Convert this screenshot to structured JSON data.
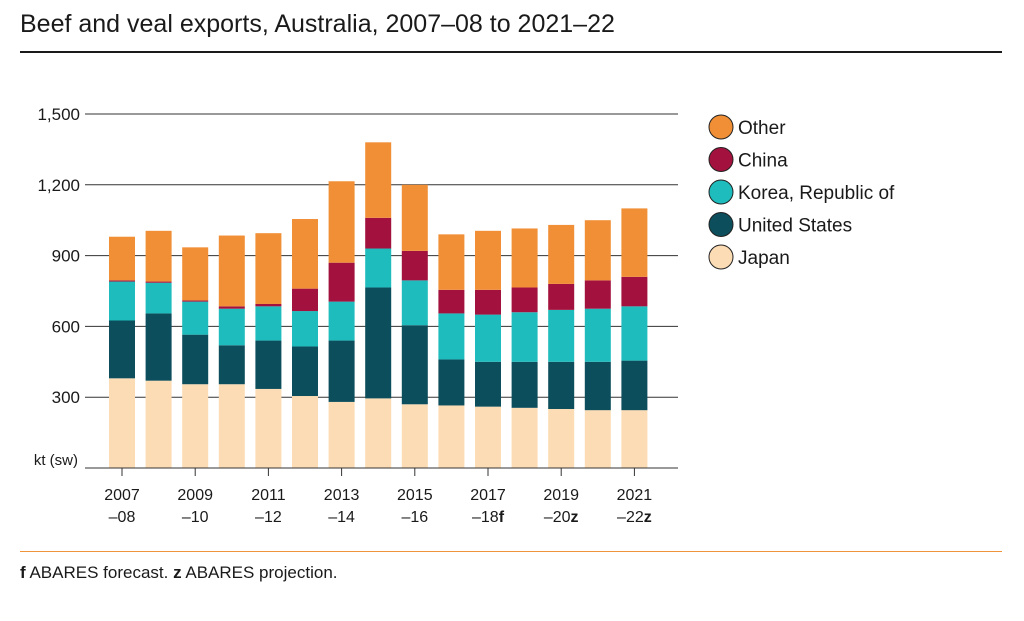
{
  "title": "Beef and veal exports, Australia, 2007–08 to 2021–22",
  "footnote": {
    "f_marker": "f",
    "f_text": " ABARES forecast. ",
    "z_marker": "z",
    "z_text": " ABARES projection."
  },
  "chart_data": {
    "type": "bar",
    "stacked": true,
    "ylabel": "kt (sw)",
    "ylim": [
      0,
      1500
    ],
    "yticks": [
      300,
      600,
      900,
      1200,
      1500
    ],
    "ytick_labels": [
      "300",
      "600",
      "900",
      "1,200",
      "1,500"
    ],
    "grid": true,
    "legend_position": "right",
    "categories": [
      "2007–08",
      "2008–09",
      "2009–10",
      "2010–11",
      "2011–12",
      "2012–13",
      "2013–14",
      "2014–15",
      "2015–16",
      "2016–17",
      "2017–18",
      "2018–19",
      "2019–20",
      "2020–21",
      "2021–22"
    ],
    "xtick_labels": [
      {
        "top": "2007",
        "bottom": "–08",
        "suffix": ""
      },
      {
        "top": "2009",
        "bottom": "–10",
        "suffix": ""
      },
      {
        "top": "2011",
        "bottom": "–12",
        "suffix": ""
      },
      {
        "top": "2013",
        "bottom": "–14",
        "suffix": ""
      },
      {
        "top": "2015",
        "bottom": "–16",
        "suffix": ""
      },
      {
        "top": "2017",
        "bottom": "–18",
        "suffix": "f"
      },
      {
        "top": "2019",
        "bottom": "–20",
        "suffix": "z"
      },
      {
        "top": "2021",
        "bottom": "–22",
        "suffix": "z"
      }
    ],
    "series": [
      {
        "name": "Japan",
        "color": "#fcdcb4",
        "values": [
          380,
          370,
          355,
          355,
          335,
          305,
          280,
          295,
          270,
          265,
          260,
          255,
          250,
          245,
          245
        ]
      },
      {
        "name": "United States",
        "color": "#0c4e5c",
        "values": [
          245,
          285,
          210,
          165,
          205,
          210,
          260,
          470,
          335,
          195,
          190,
          195,
          200,
          205,
          210
        ]
      },
      {
        "name": "Korea, Republic of",
        "color": "#1ebcbc",
        "values": [
          165,
          130,
          140,
          155,
          145,
          150,
          165,
          165,
          190,
          195,
          200,
          210,
          220,
          225,
          230
        ]
      },
      {
        "name": "China",
        "color": "#a3123e",
        "values": [
          5,
          5,
          5,
          10,
          10,
          95,
          165,
          130,
          125,
          100,
          105,
          105,
          110,
          120,
          125
        ]
      },
      {
        "name": "Other",
        "color": "#f18f36",
        "values": [
          185,
          215,
          225,
          300,
          300,
          295,
          345,
          320,
          280,
          235,
          250,
          250,
          250,
          255,
          290
        ]
      }
    ]
  }
}
